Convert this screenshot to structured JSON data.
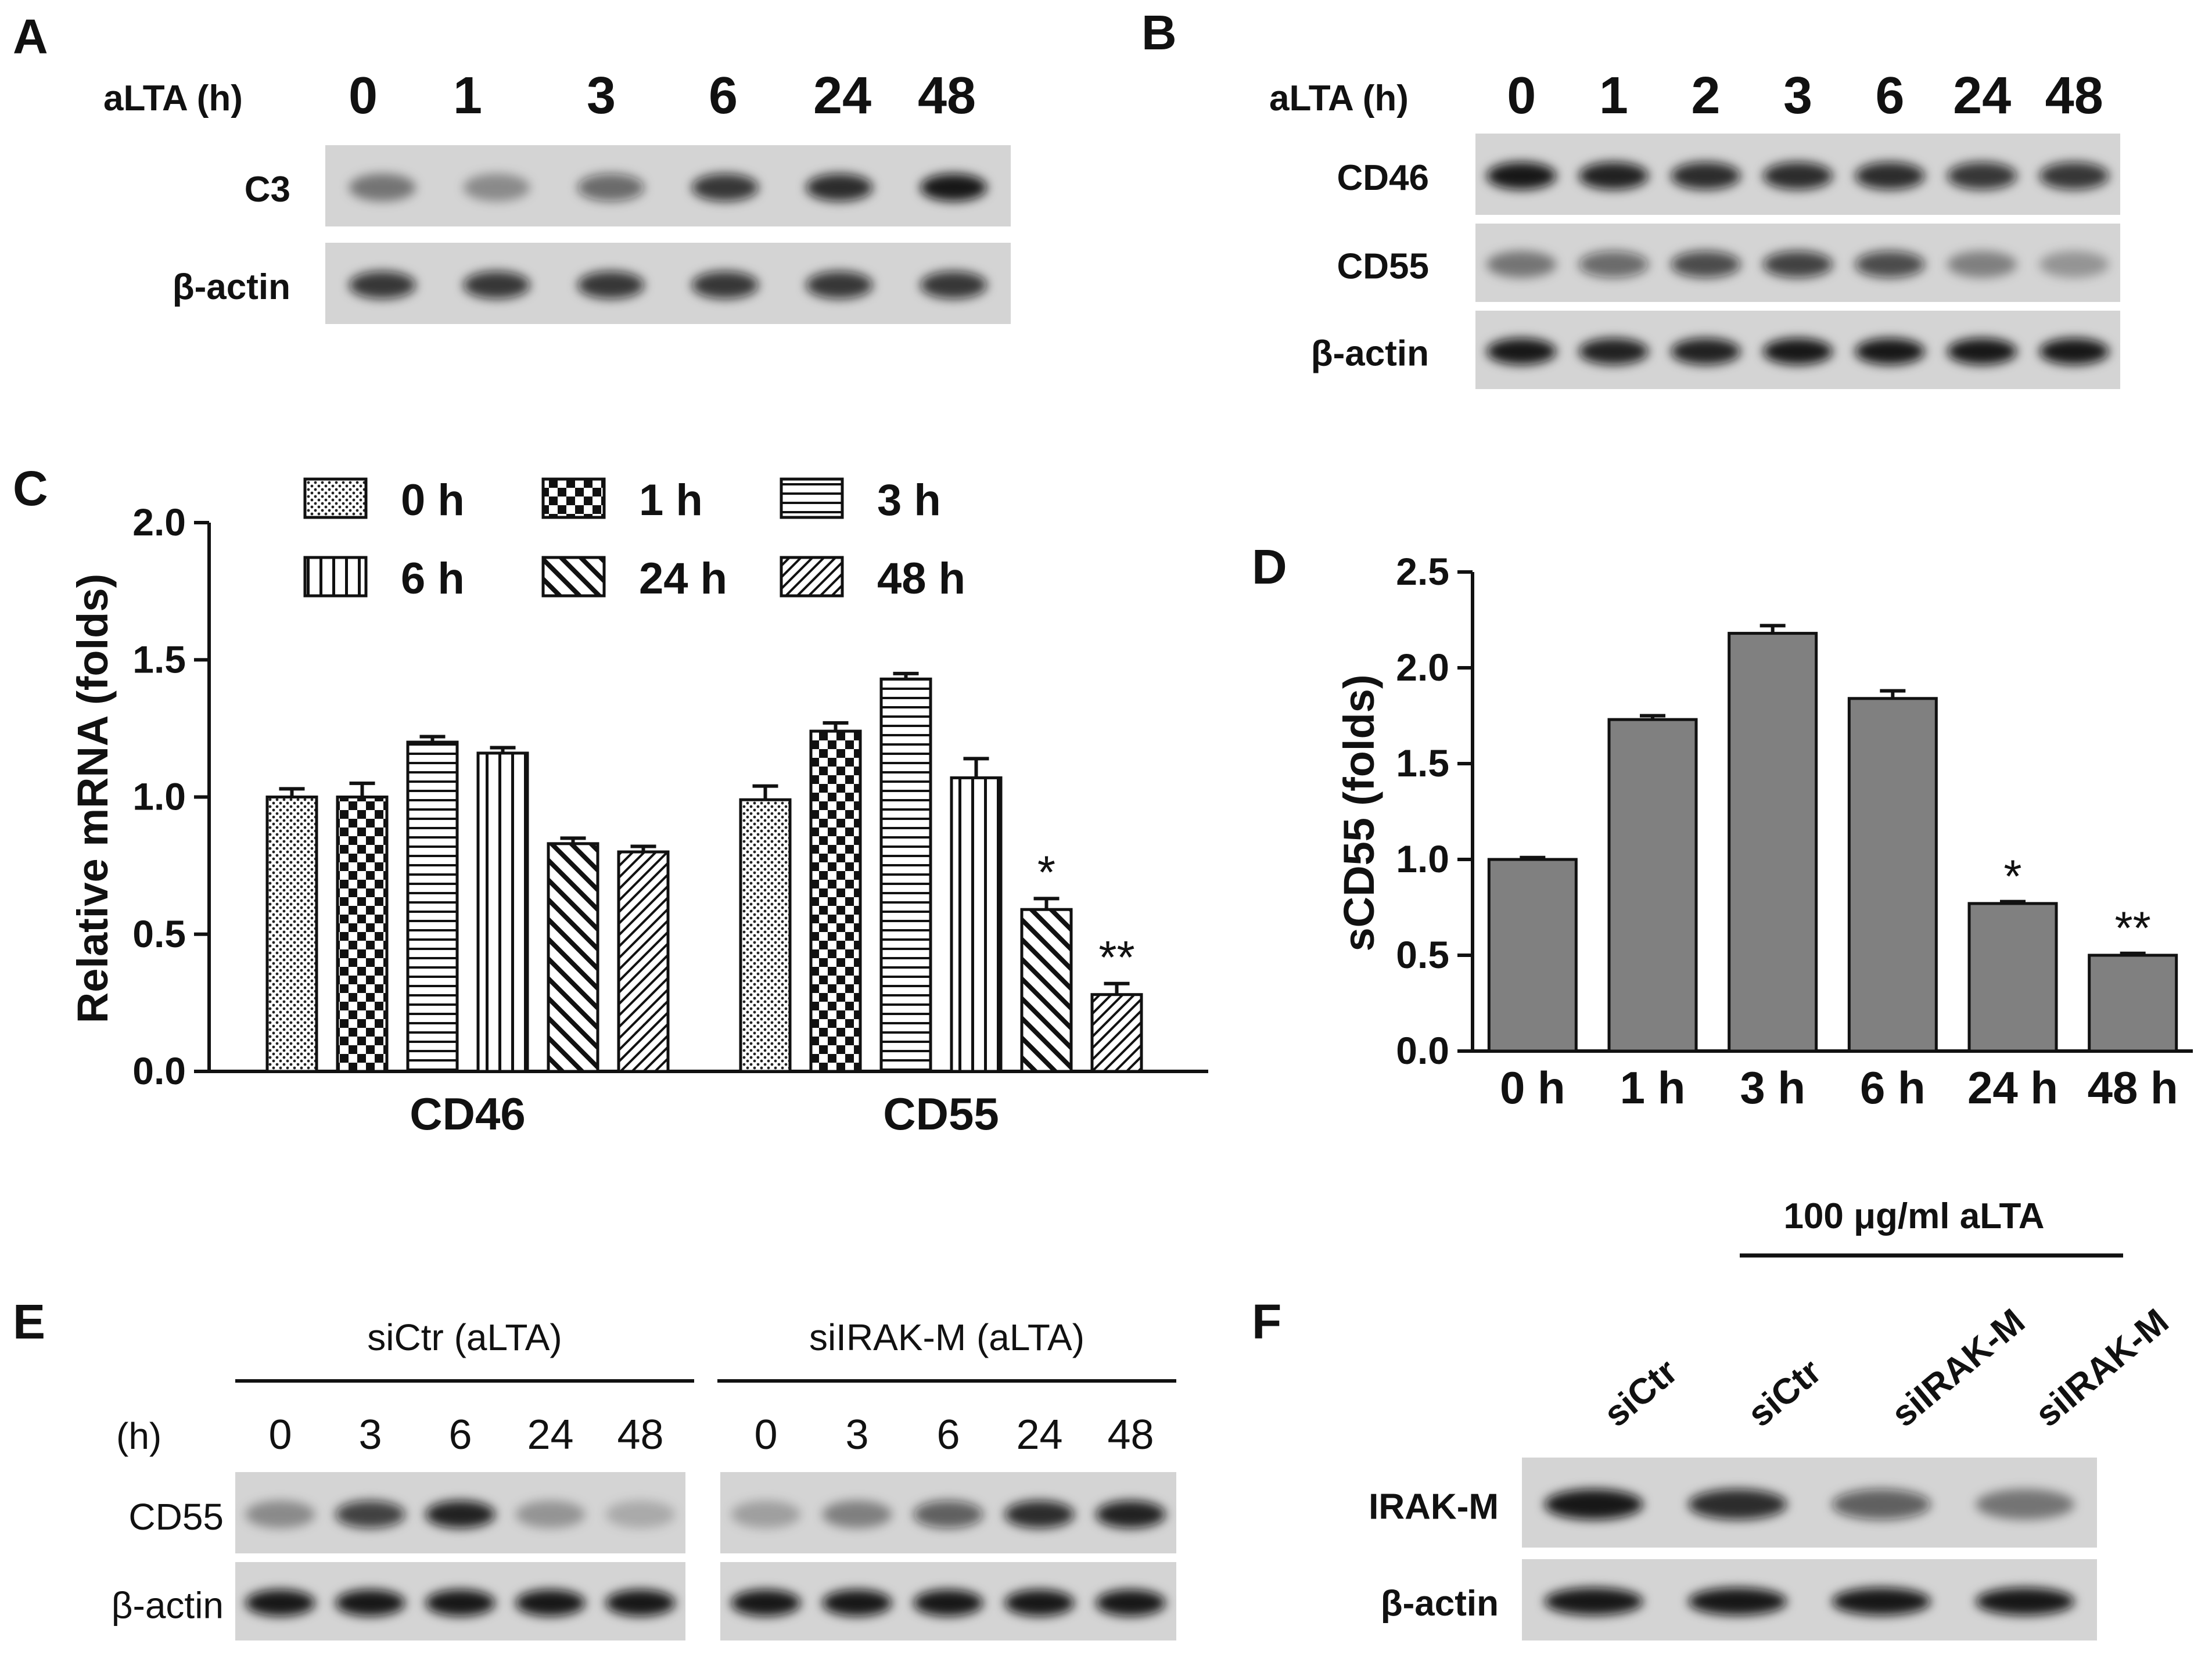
{
  "panels": {
    "A": {
      "letter": "A",
      "treatment_label": "aLTA (h)",
      "timepoints": [
        "0",
        "1",
        "3",
        "6",
        "24",
        "48"
      ],
      "rows": [
        {
          "label": "C3",
          "intensity": [
            0.45,
            0.35,
            0.55,
            0.8,
            0.85,
            0.95
          ]
        },
        {
          "label": "β-actin",
          "intensity": [
            0.8,
            0.8,
            0.8,
            0.8,
            0.8,
            0.8
          ]
        }
      ]
    },
    "B": {
      "letter": "B",
      "treatment_label": "aLTA (h)",
      "timepoints": [
        "0",
        "1",
        "2",
        "3",
        "6",
        "24",
        "48"
      ],
      "rows": [
        {
          "label": "CD46",
          "intensity": [
            0.95,
            0.9,
            0.85,
            0.85,
            0.85,
            0.8,
            0.8
          ]
        },
        {
          "label": "CD55",
          "intensity": [
            0.45,
            0.55,
            0.7,
            0.75,
            0.7,
            0.4,
            0.3
          ]
        },
        {
          "label": "β-actin",
          "intensity": [
            0.95,
            0.9,
            0.9,
            0.95,
            0.95,
            0.95,
            0.95
          ]
        }
      ]
    },
    "C": {
      "letter": "C"
    },
    "D": {
      "letter": "D"
    },
    "E": {
      "letter": "E",
      "time_label": "(h)",
      "groups": [
        {
          "title": "siCtr (aLTA)",
          "timepoints": [
            "0",
            "3",
            "6",
            "24",
            "48"
          ],
          "rows": [
            {
              "label": "CD55",
              "intensity": [
                0.35,
                0.75,
                0.9,
                0.3,
                0.2
              ]
            },
            {
              "label": "β-actin",
              "intensity": [
                0.95,
                0.95,
                0.95,
                0.95,
                0.95
              ]
            }
          ]
        },
        {
          "title": "siIRAK-M (aLTA)",
          "timepoints": [
            "0",
            "3",
            "6",
            "24",
            "48"
          ],
          "rows": [
            {
              "label": "CD55",
              "intensity": [
                0.25,
                0.4,
                0.6,
                0.85,
                0.9
              ]
            },
            {
              "label": "β-actin",
              "intensity": [
                0.95,
                0.95,
                0.95,
                0.95,
                0.95
              ]
            }
          ]
        }
      ]
    },
    "F": {
      "letter": "F",
      "treatment_bar_label": "100 μg/ml aLTA",
      "lanes": [
        "siCtr",
        "siCtr",
        "siIRAK-M",
        "siIRAK-M"
      ],
      "rows": [
        {
          "label": "IRAK-M",
          "intensity": [
            0.95,
            0.85,
            0.6,
            0.45
          ]
        },
        {
          "label": "β-actin",
          "intensity": [
            0.95,
            0.95,
            0.95,
            0.95
          ]
        }
      ]
    }
  },
  "chart_data": [
    {
      "panel": "C",
      "type": "bar",
      "categories": [
        "CD46",
        "CD55"
      ],
      "ylabel": "Relative mRNA (folds)",
      "xlabel": "",
      "ylim": [
        0,
        2.0
      ],
      "yticks": [
        "0.0",
        "0.5",
        "1.0",
        "1.5",
        "2.0"
      ],
      "legend_position": "top",
      "series": [
        {
          "name": "0 h",
          "pattern": "dots",
          "values": [
            1.0,
            0.99
          ],
          "errors": [
            0.03,
            0.05
          ],
          "sig": [
            "",
            ""
          ]
        },
        {
          "name": "1 h",
          "pattern": "checker",
          "values": [
            1.0,
            1.24
          ],
          "errors": [
            0.05,
            0.03
          ],
          "sig": [
            "",
            ""
          ]
        },
        {
          "name": "3 h",
          "pattern": "hlines",
          "values": [
            1.2,
            1.43
          ],
          "errors": [
            0.02,
            0.02
          ],
          "sig": [
            "",
            ""
          ]
        },
        {
          "name": "6 h",
          "pattern": "vlines",
          "values": [
            1.16,
            1.07
          ],
          "errors": [
            0.02,
            0.07
          ],
          "sig": [
            "",
            ""
          ]
        },
        {
          "name": "24 h",
          "pattern": "diag-wide",
          "values": [
            0.83,
            0.59
          ],
          "errors": [
            0.02,
            0.04
          ],
          "sig": [
            "",
            "*"
          ]
        },
        {
          "name": "48 h",
          "pattern": "diag-fine",
          "values": [
            0.8,
            0.28
          ],
          "errors": [
            0.02,
            0.04
          ],
          "sig": [
            "",
            "**"
          ]
        }
      ]
    },
    {
      "panel": "D",
      "type": "bar",
      "categories": [
        "0 h",
        "1 h",
        "3 h",
        "6 h",
        "24 h",
        "48 h"
      ],
      "values": [
        1.0,
        1.73,
        2.18,
        1.84,
        0.77,
        0.5
      ],
      "errors": [
        0.01,
        0.02,
        0.04,
        0.04,
        0.01,
        0.01
      ],
      "sig": [
        "",
        "",
        "",
        "",
        "*",
        "**"
      ],
      "ylabel": "sCD55 (folds)",
      "xlabel": "",
      "ylim": [
        0,
        2.5
      ],
      "yticks": [
        "0.0",
        "0.5",
        "1.0",
        "1.5",
        "2.0",
        "2.5"
      ],
      "bar_color": "#808080"
    }
  ]
}
